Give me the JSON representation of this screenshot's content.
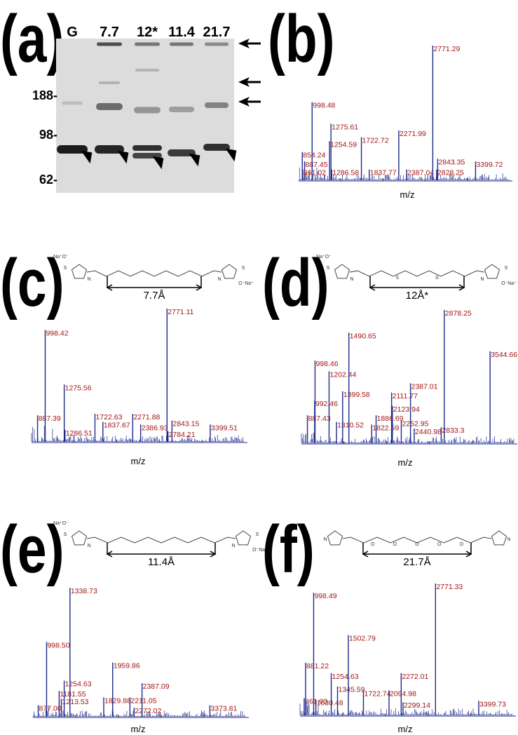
{
  "panels": [
    {
      "label": "(a)",
      "lanes": [
        "G",
        "7.7",
        "12*",
        "11.4",
        "21.7"
      ],
      "mw_markers": [
        "188-",
        "98-",
        "62-"
      ]
    },
    {
      "label": "(b)",
      "spectrum": {
        "x_label": "m/z",
        "xlim": [
          800,
          3900
        ],
        "ylim": [
          0,
          100
        ],
        "color": "#1c2a8c",
        "label_color": "#a31515",
        "mz": [
          854.24,
          887.45,
          861.02,
          998.48,
          1254.59,
          1275.61,
          1286.58,
          1722.72,
          1837.77,
          2271.99,
          2387.04,
          2771.29,
          2828.25,
          2843.35,
          3399.72
        ],
        "intensity": [
          21,
          14,
          8,
          58,
          29,
          42,
          8,
          32,
          8,
          37,
          8,
          100,
          8,
          16,
          14
        ],
        "value_labels": [
          "854.24",
          "887.45",
          "861.02",
          "998.48",
          "1254.59",
          "1275.61",
          "1286.58",
          "1722.72",
          "1837.77",
          "2271.99",
          "2387.04",
          "2771.29",
          "2828.25",
          "2843.35",
          "3399.72"
        ]
      }
    },
    {
      "label": "(c)",
      "structure": {
        "distance": "7.7Å",
        "left_atoms": [
          "Na⁺O⁻",
          "S",
          "N"
        ],
        "chain_atoms": [],
        "right_atoms": [
          "N",
          "S",
          "O⁻Na⁺"
        ]
      },
      "spectrum": {
        "x_label": "m/z",
        "xlim": [
          800,
          3900
        ],
        "ylim": [
          0,
          100
        ],
        "color": "#1c2a8c",
        "label_color": "#a31515",
        "mz": [
          887.39,
          998.42,
          1275.56,
          1286.51,
          1722.63,
          1837.67,
          2271.88,
          2386.93,
          2771.11,
          2784.21,
          2843.15,
          3399.51
        ],
        "intensity": [
          20,
          84,
          43,
          9,
          21,
          15,
          21,
          13,
          100,
          8,
          16,
          13
        ],
        "value_labels": [
          "887.39",
          "998.42",
          "1275.56",
          "1286.51",
          "1722.63",
          "1837.67",
          "2271.88",
          "2386.93",
          "2771.11",
          "2784.21",
          "2843.15",
          "3399.51"
        ]
      }
    },
    {
      "label": "(d)",
      "structure": {
        "distance": "12Å*",
        "left_atoms": [
          "Na⁺O⁻",
          "S",
          "N"
        ],
        "chain_atoms": [
          "S",
          "S"
        ],
        "right_atoms": [
          "N",
          "S",
          "O⁻Na⁺"
        ]
      },
      "spectrum": {
        "x_label": "m/z",
        "xlim": [
          800,
          3900
        ],
        "ylim": [
          0,
          100
        ],
        "color": "#1c2a8c",
        "label_color": "#a31515",
        "mz": [
          887.43,
          992.46,
          998.46,
          1202.44,
          1310.52,
          1399.58,
          1490.65,
          1822.59,
          1886.69,
          2111.77,
          2123.94,
          2252.95,
          2387.01,
          2440.98,
          2833.3,
          2878.25,
          3544.66
        ],
        "intensity": [
          21,
          32,
          62,
          54,
          16,
          39,
          83,
          14,
          21,
          38,
          28,
          17,
          45,
          11,
          12,
          100,
          69
        ],
        "value_labels": [
          "887.43",
          "992.46",
          "998.46",
          "1202.44",
          "1310.52",
          "1399.58",
          "1490.65",
          "1822.59",
          "1886.69",
          "2111.77",
          "2123.94",
          "2252.95",
          "2387.01",
          "2440.98",
          "2833.3",
          "2878.25",
          "3544.66"
        ]
      }
    },
    {
      "label": "(e)",
      "structure": {
        "distance": "11.4Å",
        "left_atoms": [
          "Na⁺O⁻",
          "S",
          "N"
        ],
        "chain_atoms": [],
        "right_atoms": [
          "N",
          "S",
          "O⁻Na⁺"
        ]
      },
      "spectrum": {
        "x_label": "m/z",
        "xlim": [
          800,
          3900
        ],
        "ylim": [
          0,
          100
        ],
        "color": "#1c2a8c",
        "label_color": "#a31515",
        "mz": [
          877.0,
          998.5,
          1181.55,
          1213.53,
          1254.63,
          1338.73,
          1829.88,
          1959.86,
          2211.05,
          2272.02,
          2387.09,
          3373.81
        ],
        "intensity": [
          9,
          58,
          20,
          14,
          28,
          100,
          15,
          42,
          15,
          7,
          26,
          9
        ],
        "value_labels": [
          "877.00",
          "998.50",
          "1181.55",
          "1213.53",
          "1254.63",
          "1338.73",
          "1829.88",
          "1959.86",
          "2211.05",
          "2272.02",
          "2387.09",
          "3373.81"
        ]
      }
    },
    {
      "label": "(f)",
      "structure": {
        "distance": "21.7Å",
        "left_atoms": [
          "N"
        ],
        "chain_atoms": [
          "O",
          "O",
          "O",
          "O",
          "O"
        ],
        "right_atoms": [
          "N"
        ]
      },
      "spectrum": {
        "x_label": "m/z",
        "xlim": [
          800,
          3900
        ],
        "ylim": [
          0,
          100
        ],
        "color": "#1c2a8c",
        "label_color": "#a31515",
        "mz": [
          861.03,
          881.22,
          998.49,
          1030.48,
          1254.63,
          1345.59,
          1502.79,
          1722.74,
          2094.98,
          2272.01,
          2299.14,
          2771.33,
          3399.73
        ],
        "intensity": [
          13,
          40,
          93,
          12,
          32,
          22,
          61,
          19,
          19,
          32,
          10,
          100,
          11
        ],
        "value_labels": [
          "861.03",
          "881.22",
          "998.49",
          "1030.48",
          "1254.63",
          "1345.59",
          "1502.79",
          "1722.74",
          "2094.98",
          "2272.01",
          "2299.14",
          "2771.33",
          "3399.73"
        ]
      }
    }
  ]
}
